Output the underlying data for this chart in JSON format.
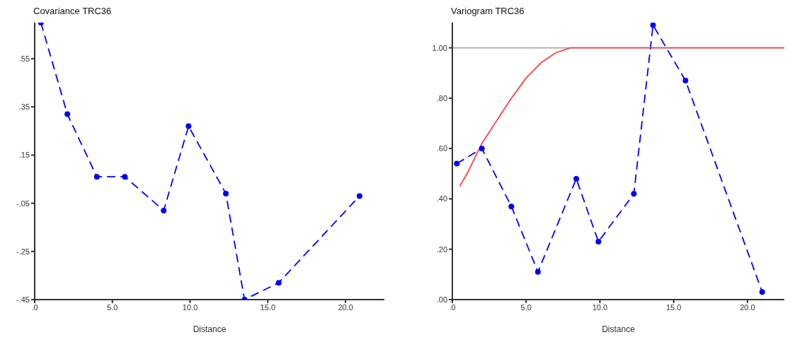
{
  "chart_data": [
    {
      "type": "line",
      "title": "Covariance TRC36",
      "xlabel": "Distance",
      "xlim": [
        0,
        22.5
      ],
      "xticks": [
        {
          "value": 0,
          "label": ".0"
        },
        {
          "value": 5,
          "label": "5.0"
        },
        {
          "value": 10,
          "label": "10.0"
        },
        {
          "value": 15,
          "label": "15.0"
        },
        {
          "value": 20,
          "label": "20.0"
        }
      ],
      "ylim": [
        -0.45,
        0.7
      ],
      "yticks": [
        {
          "value": -0.45,
          "label": "-.45"
        },
        {
          "value": -0.25,
          "label": "-.25"
        },
        {
          "value": -0.05,
          "label": "-.05"
        },
        {
          "value": 0.15,
          "label": ".15"
        },
        {
          "value": 0.35,
          "label": ".35"
        },
        {
          "value": 0.55,
          "label": ".55"
        }
      ],
      "grid": false,
      "legend": false,
      "series": [
        {
          "color": "#0000ff",
          "marker": "circle",
          "line_style": "dashed",
          "x": [
            0.4,
            2.1,
            4.0,
            5.8,
            8.3,
            9.9,
            12.3,
            13.5,
            15.7,
            20.9
          ],
          "values": [
            0.7,
            0.32,
            0.06,
            0.06,
            -0.08,
            0.27,
            -0.01,
            -0.45,
            -0.38,
            -0.02
          ]
        }
      ]
    },
    {
      "type": "line",
      "title": "Variogram TRC36",
      "xlabel": "Distance",
      "xlim": [
        0,
        22.5
      ],
      "xticks": [
        {
          "value": 0,
          "label": ".0"
        },
        {
          "value": 5,
          "label": "5.0"
        },
        {
          "value": 10,
          "label": "10.0"
        },
        {
          "value": 15,
          "label": "15.0"
        },
        {
          "value": 20,
          "label": "20.0"
        }
      ],
      "ylim": [
        0,
        1.1
      ],
      "yticks": [
        {
          "value": 0,
          "label": ".00"
        },
        {
          "value": 0.2,
          "label": ".20"
        },
        {
          "value": 0.4,
          "label": ".40"
        },
        {
          "value": 0.6,
          "label": ".60"
        },
        {
          "value": 0.8,
          "label": ".80"
        },
        {
          "value": 1,
          "label": "1.00"
        }
      ],
      "grid": false,
      "legend": false,
      "ref_lines": [
        {
          "axis": "y",
          "value": 1,
          "color": "#a0a0a0",
          "line_style": "solid"
        }
      ],
      "series": [
        {
          "color": "#0000ff",
          "marker": "circle",
          "line_style": "dashed",
          "x": [
            0.3,
            2.0,
            4.0,
            5.8,
            8.4,
            9.9,
            12.3,
            13.6,
            15.8,
            21.0
          ],
          "values": [
            0.54,
            0.6,
            0.37,
            0.11,
            0.48,
            0.23,
            0.42,
            1.09,
            0.87,
            0.03
          ]
        },
        {
          "color": "#ff4040",
          "marker": "none",
          "line_style": "solid",
          "x": [
            0.5,
            1,
            2,
            3,
            4,
            5,
            6,
            7,
            8,
            22.5
          ],
          "values": [
            0.45,
            0.5,
            0.62,
            0.71,
            0.8,
            0.88,
            0.94,
            0.98,
            1.0,
            1.0
          ]
        }
      ]
    }
  ]
}
